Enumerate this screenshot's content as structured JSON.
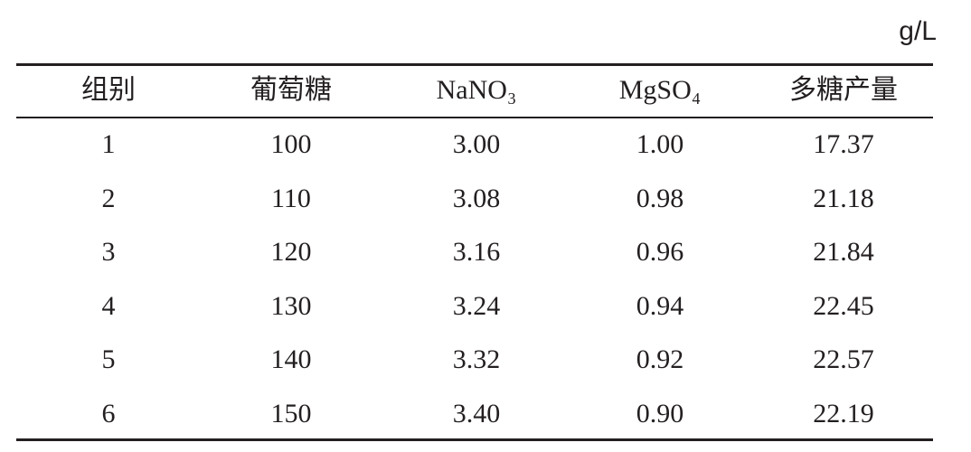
{
  "unit": "g/L",
  "table": {
    "header": [
      "组别",
      "葡萄糖",
      "NaNO₃",
      "MgSO₄",
      "多糖产量"
    ],
    "rows": [
      [
        "1",
        "100",
        "3.00",
        "1.00",
        "17.37"
      ],
      [
        "2",
        "110",
        "3.08",
        "0.98",
        "21.18"
      ],
      [
        "3",
        "120",
        "3.16",
        "0.96",
        "21.84"
      ],
      [
        "4",
        "130",
        "3.24",
        "0.94",
        "22.45"
      ],
      [
        "5",
        "140",
        "3.32",
        "0.92",
        "22.57"
      ],
      [
        "6",
        "150",
        "3.40",
        "0.90",
        "22.19"
      ]
    ]
  }
}
